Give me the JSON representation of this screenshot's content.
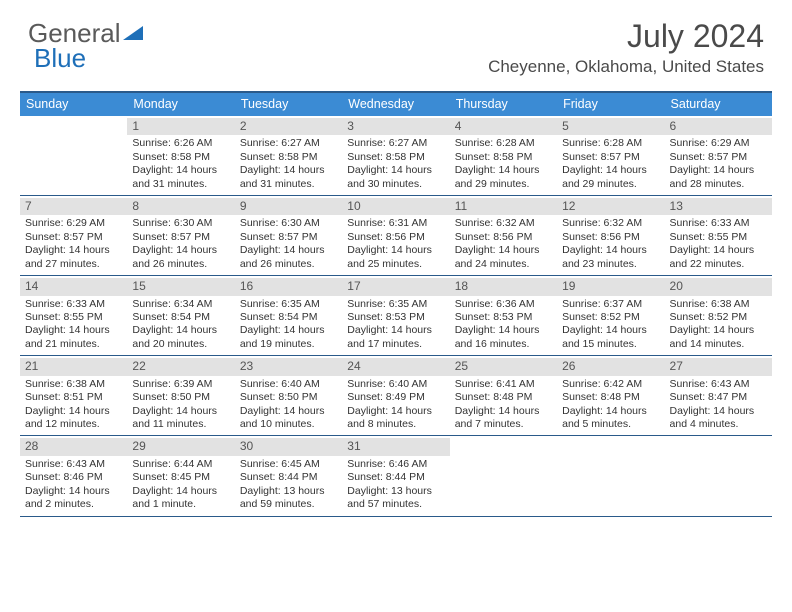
{
  "logo": {
    "text1": "General",
    "text2": "Blue"
  },
  "title": "July 2024",
  "location": "Cheyenne, Oklahoma, United States",
  "colors": {
    "header_bg": "#3b8bd4",
    "border": "#2a5a8a",
    "daynum_bg": "#e2e2e2",
    "logo_gray": "#5a5a5a",
    "logo_blue": "#1e6fb8"
  },
  "dayHeaders": [
    "Sunday",
    "Monday",
    "Tuesday",
    "Wednesday",
    "Thursday",
    "Friday",
    "Saturday"
  ],
  "weeks": [
    [
      {},
      {
        "n": "1",
        "sr": "Sunrise: 6:26 AM",
        "ss": "Sunset: 8:58 PM",
        "d1": "Daylight: 14 hours",
        "d2": "and 31 minutes."
      },
      {
        "n": "2",
        "sr": "Sunrise: 6:27 AM",
        "ss": "Sunset: 8:58 PM",
        "d1": "Daylight: 14 hours",
        "d2": "and 31 minutes."
      },
      {
        "n": "3",
        "sr": "Sunrise: 6:27 AM",
        "ss": "Sunset: 8:58 PM",
        "d1": "Daylight: 14 hours",
        "d2": "and 30 minutes."
      },
      {
        "n": "4",
        "sr": "Sunrise: 6:28 AM",
        "ss": "Sunset: 8:58 PM",
        "d1": "Daylight: 14 hours",
        "d2": "and 29 minutes."
      },
      {
        "n": "5",
        "sr": "Sunrise: 6:28 AM",
        "ss": "Sunset: 8:57 PM",
        "d1": "Daylight: 14 hours",
        "d2": "and 29 minutes."
      },
      {
        "n": "6",
        "sr": "Sunrise: 6:29 AM",
        "ss": "Sunset: 8:57 PM",
        "d1": "Daylight: 14 hours",
        "d2": "and 28 minutes."
      }
    ],
    [
      {
        "n": "7",
        "sr": "Sunrise: 6:29 AM",
        "ss": "Sunset: 8:57 PM",
        "d1": "Daylight: 14 hours",
        "d2": "and 27 minutes."
      },
      {
        "n": "8",
        "sr": "Sunrise: 6:30 AM",
        "ss": "Sunset: 8:57 PM",
        "d1": "Daylight: 14 hours",
        "d2": "and 26 minutes."
      },
      {
        "n": "9",
        "sr": "Sunrise: 6:30 AM",
        "ss": "Sunset: 8:57 PM",
        "d1": "Daylight: 14 hours",
        "d2": "and 26 minutes."
      },
      {
        "n": "10",
        "sr": "Sunrise: 6:31 AM",
        "ss": "Sunset: 8:56 PM",
        "d1": "Daylight: 14 hours",
        "d2": "and 25 minutes."
      },
      {
        "n": "11",
        "sr": "Sunrise: 6:32 AM",
        "ss": "Sunset: 8:56 PM",
        "d1": "Daylight: 14 hours",
        "d2": "and 24 minutes."
      },
      {
        "n": "12",
        "sr": "Sunrise: 6:32 AM",
        "ss": "Sunset: 8:56 PM",
        "d1": "Daylight: 14 hours",
        "d2": "and 23 minutes."
      },
      {
        "n": "13",
        "sr": "Sunrise: 6:33 AM",
        "ss": "Sunset: 8:55 PM",
        "d1": "Daylight: 14 hours",
        "d2": "and 22 minutes."
      }
    ],
    [
      {
        "n": "14",
        "sr": "Sunrise: 6:33 AM",
        "ss": "Sunset: 8:55 PM",
        "d1": "Daylight: 14 hours",
        "d2": "and 21 minutes."
      },
      {
        "n": "15",
        "sr": "Sunrise: 6:34 AM",
        "ss": "Sunset: 8:54 PM",
        "d1": "Daylight: 14 hours",
        "d2": "and 20 minutes."
      },
      {
        "n": "16",
        "sr": "Sunrise: 6:35 AM",
        "ss": "Sunset: 8:54 PM",
        "d1": "Daylight: 14 hours",
        "d2": "and 19 minutes."
      },
      {
        "n": "17",
        "sr": "Sunrise: 6:35 AM",
        "ss": "Sunset: 8:53 PM",
        "d1": "Daylight: 14 hours",
        "d2": "and 17 minutes."
      },
      {
        "n": "18",
        "sr": "Sunrise: 6:36 AM",
        "ss": "Sunset: 8:53 PM",
        "d1": "Daylight: 14 hours",
        "d2": "and 16 minutes."
      },
      {
        "n": "19",
        "sr": "Sunrise: 6:37 AM",
        "ss": "Sunset: 8:52 PM",
        "d1": "Daylight: 14 hours",
        "d2": "and 15 minutes."
      },
      {
        "n": "20",
        "sr": "Sunrise: 6:38 AM",
        "ss": "Sunset: 8:52 PM",
        "d1": "Daylight: 14 hours",
        "d2": "and 14 minutes."
      }
    ],
    [
      {
        "n": "21",
        "sr": "Sunrise: 6:38 AM",
        "ss": "Sunset: 8:51 PM",
        "d1": "Daylight: 14 hours",
        "d2": "and 12 minutes."
      },
      {
        "n": "22",
        "sr": "Sunrise: 6:39 AM",
        "ss": "Sunset: 8:50 PM",
        "d1": "Daylight: 14 hours",
        "d2": "and 11 minutes."
      },
      {
        "n": "23",
        "sr": "Sunrise: 6:40 AM",
        "ss": "Sunset: 8:50 PM",
        "d1": "Daylight: 14 hours",
        "d2": "and 10 minutes."
      },
      {
        "n": "24",
        "sr": "Sunrise: 6:40 AM",
        "ss": "Sunset: 8:49 PM",
        "d1": "Daylight: 14 hours",
        "d2": "and 8 minutes."
      },
      {
        "n": "25",
        "sr": "Sunrise: 6:41 AM",
        "ss": "Sunset: 8:48 PM",
        "d1": "Daylight: 14 hours",
        "d2": "and 7 minutes."
      },
      {
        "n": "26",
        "sr": "Sunrise: 6:42 AM",
        "ss": "Sunset: 8:48 PM",
        "d1": "Daylight: 14 hours",
        "d2": "and 5 minutes."
      },
      {
        "n": "27",
        "sr": "Sunrise: 6:43 AM",
        "ss": "Sunset: 8:47 PM",
        "d1": "Daylight: 14 hours",
        "d2": "and 4 minutes."
      }
    ],
    [
      {
        "n": "28",
        "sr": "Sunrise: 6:43 AM",
        "ss": "Sunset: 8:46 PM",
        "d1": "Daylight: 14 hours",
        "d2": "and 2 minutes."
      },
      {
        "n": "29",
        "sr": "Sunrise: 6:44 AM",
        "ss": "Sunset: 8:45 PM",
        "d1": "Daylight: 14 hours",
        "d2": "and 1 minute."
      },
      {
        "n": "30",
        "sr": "Sunrise: 6:45 AM",
        "ss": "Sunset: 8:44 PM",
        "d1": "Daylight: 13 hours",
        "d2": "and 59 minutes."
      },
      {
        "n": "31",
        "sr": "Sunrise: 6:46 AM",
        "ss": "Sunset: 8:44 PM",
        "d1": "Daylight: 13 hours",
        "d2": "and 57 minutes."
      },
      {},
      {},
      {}
    ]
  ]
}
